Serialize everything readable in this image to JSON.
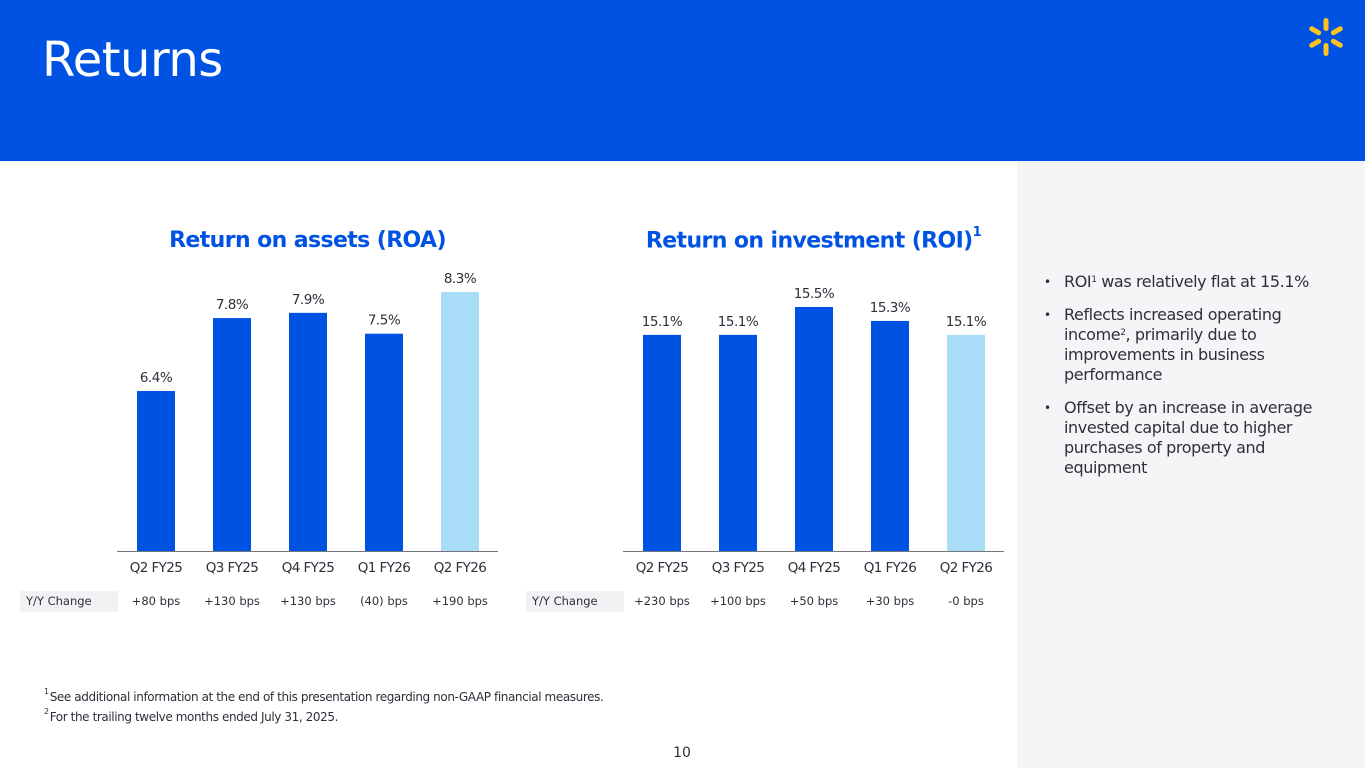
{
  "header": {
    "title": "Returns",
    "logo_icon": "walmart-spark-icon",
    "logo_color": "#ffc220",
    "bg_color": "#0053e2"
  },
  "colors": {
    "bar_primary": "#0053e2",
    "bar_highlight": "#a9ddf7",
    "axis": "#74767c",
    "label": "#2e2f3a"
  },
  "chart_data": [
    {
      "type": "bar",
      "title": "Return on assets (ROA)",
      "title_sup": "",
      "categories": [
        "Q2 FY25",
        "Q3 FY25",
        "Q4 FY25",
        "Q1 FY26",
        "Q2 FY26"
      ],
      "values": [
        6.4,
        7.8,
        7.9,
        7.5,
        8.3
      ],
      "labels": [
        "6.4%",
        "7.8%",
        "7.9%",
        "7.5%",
        "8.3%"
      ],
      "highlight_index": 4,
      "ylim": [
        3.33,
        8.3
      ],
      "grid": false,
      "xlabel": "",
      "ylabel": "",
      "yy_label": "Y/Y Change",
      "yy_values": [
        "+80 bps",
        "+130 bps",
        "+130 bps",
        "(40) bps",
        "+190 bps"
      ]
    },
    {
      "type": "bar",
      "title": "Return on investment (ROI)",
      "title_sup": "1",
      "categories": [
        "Q2 FY25",
        "Q3 FY25",
        "Q4 FY25",
        "Q1 FY26",
        "Q2 FY26"
      ],
      "values": [
        15.1,
        15.1,
        15.5,
        15.3,
        15.1
      ],
      "labels": [
        "15.1%",
        "15.1%",
        "15.5%",
        "15.3%",
        "15.1%"
      ],
      "highlight_index": 4,
      "ylim": [
        12.0,
        15.5
      ],
      "grid": false,
      "xlabel": "",
      "ylabel": "",
      "yy_label": "Y/Y Change",
      "yy_values": [
        "+230 bps",
        "+100 bps",
        "+50 bps",
        "+30 bps",
        "-0 bps"
      ]
    }
  ],
  "bullets": [
    {
      "pre": "ROI",
      "sup": "1",
      "post": " was relatively flat at 15.1%"
    },
    {
      "pre": "Reflects increased operating income",
      "sup": "2",
      "post": ", primarily due to improvements in business performance"
    },
    {
      "pre": "Offset by an increase in average invested capital due to higher purchases of property and equipment",
      "sup": "",
      "post": ""
    }
  ],
  "footnotes": [
    {
      "num": "1",
      "text": "See additional information at the end of this presentation regarding non-GAAP financial measures."
    },
    {
      "num": "2",
      "text": "For the trailing twelve months ended July 31, 2025."
    }
  ],
  "page_number": "10"
}
